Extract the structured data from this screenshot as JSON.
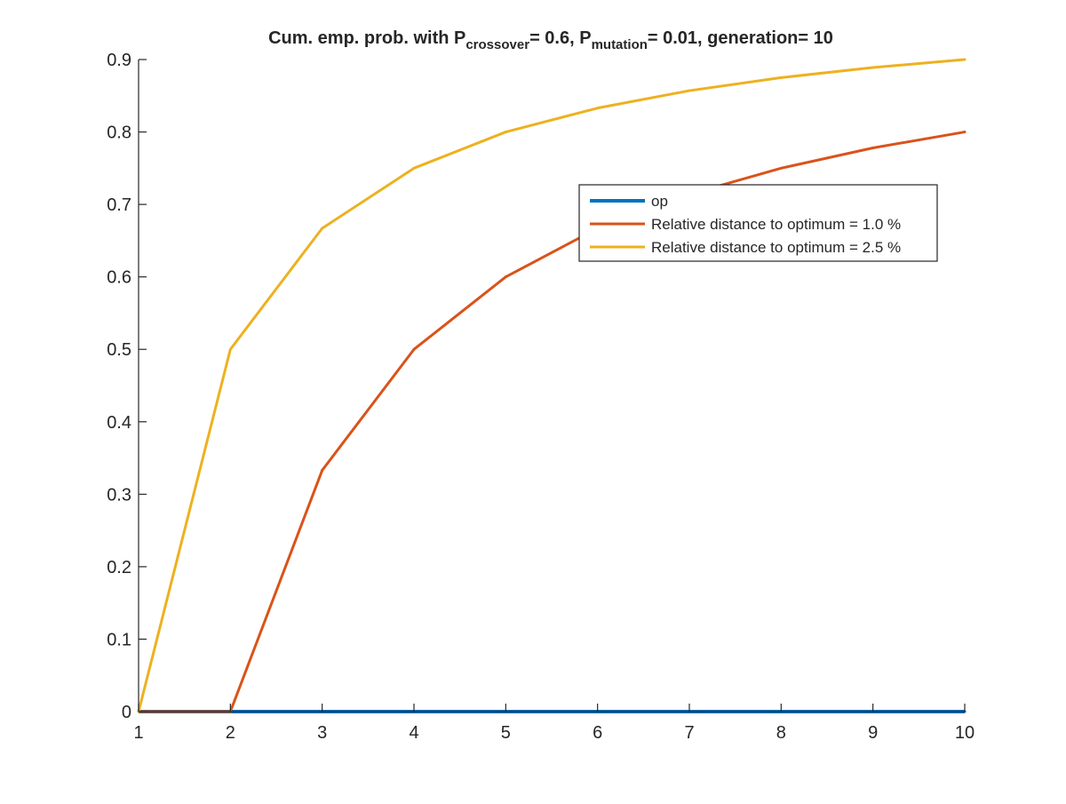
{
  "figure": {
    "title": {
      "prefix": "Cum. emp. prob. with P",
      "sub1": "crossover",
      "mid1": "= 0.6, P",
      "sub2": "mutation",
      "suffix": "= 0.01, generation= 10"
    }
  },
  "chart_data": {
    "type": "line",
    "title": "Cum. emp. prob. with P_crossover = 0.6, P_mutation = 0.01, generation= 10",
    "xlabel": "",
    "ylabel": "",
    "xlim": [
      1,
      10
    ],
    "ylim": [
      0,
      0.9
    ],
    "xticks": [
      1,
      2,
      3,
      4,
      5,
      6,
      7,
      8,
      9,
      10
    ],
    "yticks": [
      0,
      0.1,
      0.2,
      0.3,
      0.4,
      0.5,
      0.6,
      0.7,
      0.8,
      0.9
    ],
    "xtick_labels": [
      "1",
      "2",
      "3",
      "4",
      "5",
      "6",
      "7",
      "8",
      "9",
      "10"
    ],
    "ytick_labels": [
      "0",
      "0.1",
      "0.2",
      "0.3",
      "0.4",
      "0.5",
      "0.6",
      "0.7",
      "0.8",
      "0.9"
    ],
    "grid": false,
    "legend_position": "upper-right",
    "x": [
      1,
      2,
      3,
      4,
      5,
      6,
      7,
      8,
      9,
      10
    ],
    "series": [
      {
        "name": "op",
        "color": "#0072BD",
        "values": [
          0,
          0,
          0,
          0,
          0,
          0,
          0,
          0,
          0,
          0
        ]
      },
      {
        "name": "Relative distance to optimum = 1.0 %",
        "color": "#D95319",
        "values": [
          0,
          0,
          0.333,
          0.5,
          0.6,
          0.667,
          0.714,
          0.75,
          0.778,
          0.8
        ]
      },
      {
        "name": "Relative distance to optimum = 2.5 %",
        "color": "#EDB120",
        "values": [
          0,
          0.5,
          0.667,
          0.75,
          0.8,
          0.833,
          0.857,
          0.875,
          0.889,
          0.9
        ]
      }
    ]
  }
}
